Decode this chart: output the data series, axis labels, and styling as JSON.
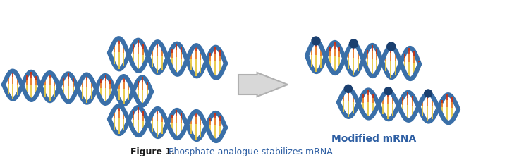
{
  "figure_label": "Figure 1.",
  "figure_text": " Phosphate analogue stabilizes mRNA.",
  "modified_mrna_label": "Modified mRNA",
  "label_color": "#2e5fa3",
  "figure_label_color": "#1a1a1a",
  "bg_color": "#ffffff",
  "blue_color": "#3a6fa8",
  "yellow_color": "#e8c840",
  "orange_color": "#e87820",
  "red_color": "#cc3010",
  "dot_color": "#1a3f6f",
  "arrow_face": "#d8d8d8",
  "arrow_edge": "#b0b0b0"
}
